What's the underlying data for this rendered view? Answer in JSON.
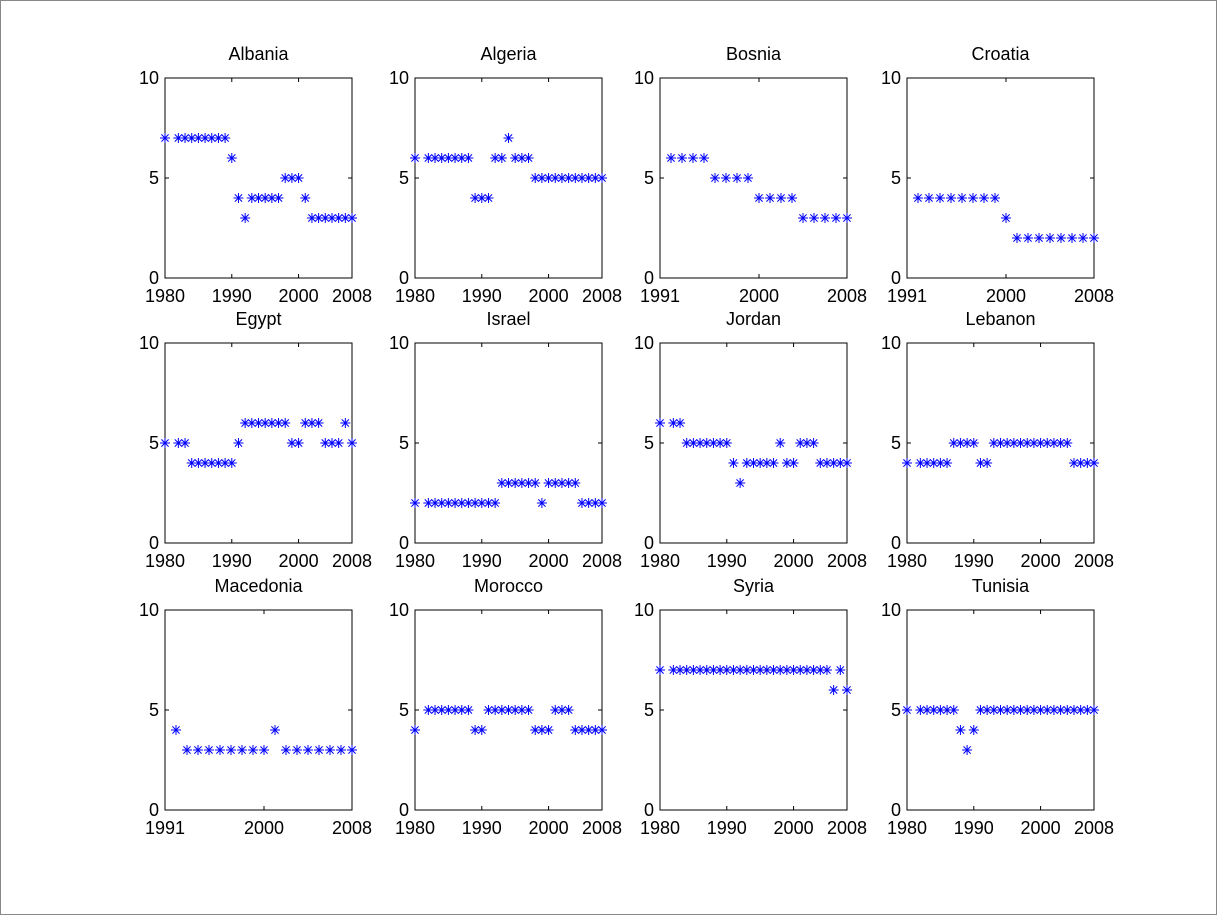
{
  "chart_data": [
    {
      "type": "scatter",
      "title": "Albania",
      "color": "#0000ff",
      "marker": "*",
      "xlim": [
        1980,
        2008
      ],
      "ylim": [
        0,
        10
      ],
      "xticks": [
        1980,
        1990,
        2000,
        2008
      ],
      "yticks": [
        0,
        5,
        10
      ],
      "x": [
        1980,
        1982,
        1983,
        1984,
        1985,
        1986,
        1987,
        1988,
        1989,
        1990,
        1991,
        1992,
        1993,
        1994,
        1995,
        1996,
        1997,
        1998,
        1999,
        2000,
        2001,
        2002,
        2003,
        2004,
        2005,
        2006,
        2007,
        2008
      ],
      "values": [
        7,
        7,
        7,
        7,
        7,
        7,
        7,
        7,
        7,
        6,
        4,
        3,
        4,
        4,
        4,
        4,
        4,
        5,
        5,
        5,
        4,
        3,
        3,
        3,
        3,
        3,
        3,
        3
      ]
    },
    {
      "type": "scatter",
      "title": "Algeria",
      "color": "#0000ff",
      "marker": "*",
      "xlim": [
        1980,
        2008
      ],
      "ylim": [
        0,
        10
      ],
      "xticks": [
        1980,
        1990,
        2000,
        2008
      ],
      "yticks": [
        0,
        5,
        10
      ],
      "x": [
        1980,
        1982,
        1983,
        1984,
        1985,
        1986,
        1987,
        1988,
        1989,
        1990,
        1991,
        1992,
        1993,
        1994,
        1995,
        1996,
        1997,
        1998,
        1999,
        2000,
        2001,
        2002,
        2003,
        2004,
        2005,
        2006,
        2007,
        2008
      ],
      "values": [
        6,
        6,
        6,
        6,
        6,
        6,
        6,
        6,
        4,
        4,
        4,
        6,
        6,
        7,
        6,
        6,
        6,
        5,
        5,
        5,
        5,
        5,
        5,
        5,
        5,
        5,
        5,
        5
      ]
    },
    {
      "type": "scatter",
      "title": "Bosnia",
      "color": "#0000ff",
      "marker": "*",
      "xlim": [
        1991,
        2008
      ],
      "ylim": [
        0,
        10
      ],
      "xticks": [
        1991,
        2000,
        2008
      ],
      "yticks": [
        0,
        5,
        10
      ],
      "x": [
        1992,
        1993,
        1994,
        1995,
        1996,
        1997,
        1998,
        1999,
        2000,
        2001,
        2002,
        2003,
        2004,
        2005,
        2006,
        2007,
        2008
      ],
      "values": [
        6,
        6,
        6,
        6,
        5,
        5,
        5,
        5,
        4,
        4,
        4,
        4,
        3,
        3,
        3,
        3,
        3
      ]
    },
    {
      "type": "scatter",
      "title": "Croatia",
      "color": "#0000ff",
      "marker": "*",
      "xlim": [
        1991,
        2008
      ],
      "ylim": [
        0,
        10
      ],
      "xticks": [
        1991,
        2000,
        2008
      ],
      "yticks": [
        0,
        5,
        10
      ],
      "x": [
        1992,
        1993,
        1994,
        1995,
        1996,
        1997,
        1998,
        1999,
        2000,
        2001,
        2002,
        2003,
        2004,
        2005,
        2006,
        2007,
        2008
      ],
      "values": [
        4,
        4,
        4,
        4,
        4,
        4,
        4,
        4,
        3,
        2,
        2,
        2,
        2,
        2,
        2,
        2,
        2
      ]
    },
    {
      "type": "scatter",
      "title": "Egypt",
      "color": "#0000ff",
      "marker": "*",
      "xlim": [
        1980,
        2008
      ],
      "ylim": [
        0,
        10
      ],
      "xticks": [
        1980,
        1990,
        2000,
        2008
      ],
      "yticks": [
        0,
        5,
        10
      ],
      "x": [
        1980,
        1982,
        1983,
        1984,
        1985,
        1986,
        1987,
        1988,
        1989,
        1990,
        1991,
        1992,
        1993,
        1994,
        1995,
        1996,
        1997,
        1998,
        1999,
        2000,
        2001,
        2002,
        2003,
        2004,
        2005,
        2006,
        2007,
        2008
      ],
      "values": [
        5,
        5,
        5,
        4,
        4,
        4,
        4,
        4,
        4,
        4,
        5,
        6,
        6,
        6,
        6,
        6,
        6,
        6,
        5,
        5,
        6,
        6,
        6,
        5,
        5,
        5,
        6,
        5
      ]
    },
    {
      "type": "scatter",
      "title": "Israel",
      "color": "#0000ff",
      "marker": "*",
      "xlim": [
        1980,
        2008
      ],
      "ylim": [
        0,
        10
      ],
      "xticks": [
        1980,
        1990,
        2000,
        2008
      ],
      "yticks": [
        0,
        5,
        10
      ],
      "x": [
        1980,
        1982,
        1983,
        1984,
        1985,
        1986,
        1987,
        1988,
        1989,
        1990,
        1991,
        1992,
        1993,
        1994,
        1995,
        1996,
        1997,
        1998,
        1999,
        2000,
        2001,
        2002,
        2003,
        2004,
        2005,
        2006,
        2007,
        2008
      ],
      "values": [
        2,
        2,
        2,
        2,
        2,
        2,
        2,
        2,
        2,
        2,
        2,
        2,
        3,
        3,
        3,
        3,
        3,
        3,
        2,
        3,
        3,
        3,
        3,
        3,
        2,
        2,
        2,
        2
      ]
    },
    {
      "type": "scatter",
      "title": "Jordan",
      "color": "#0000ff",
      "marker": "*",
      "xlim": [
        1980,
        2008
      ],
      "ylim": [
        0,
        10
      ],
      "xticks": [
        1980,
        1990,
        2000,
        2008
      ],
      "yticks": [
        0,
        5,
        10
      ],
      "x": [
        1980,
        1982,
        1983,
        1984,
        1985,
        1986,
        1987,
        1988,
        1989,
        1990,
        1991,
        1992,
        1993,
        1994,
        1995,
        1996,
        1997,
        1998,
        1999,
        2000,
        2001,
        2002,
        2003,
        2004,
        2005,
        2006,
        2007,
        2008
      ],
      "values": [
        6,
        6,
        6,
        5,
        5,
        5,
        5,
        5,
        5,
        5,
        4,
        3,
        4,
        4,
        4,
        4,
        4,
        5,
        4,
        4,
        5,
        5,
        5,
        4,
        4,
        4,
        4,
        4
      ]
    },
    {
      "type": "scatter",
      "title": "Lebanon",
      "color": "#0000ff",
      "marker": "*",
      "xlim": [
        1980,
        2008
      ],
      "ylim": [
        0,
        10
      ],
      "xticks": [
        1980,
        1990,
        2000,
        2008
      ],
      "yticks": [
        0,
        5,
        10
      ],
      "x": [
        1980,
        1982,
        1983,
        1984,
        1985,
        1986,
        1987,
        1988,
        1989,
        1990,
        1991,
        1992,
        1993,
        1994,
        1995,
        1996,
        1997,
        1998,
        1999,
        2000,
        2001,
        2002,
        2003,
        2004,
        2005,
        2006,
        2007,
        2008
      ],
      "values": [
        4,
        4,
        4,
        4,
        4,
        4,
        5,
        5,
        5,
        5,
        4,
        4,
        5,
        5,
        5,
        5,
        5,
        5,
        5,
        5,
        5,
        5,
        5,
        5,
        4,
        4,
        4,
        4
      ]
    },
    {
      "type": "scatter",
      "title": "Macedonia",
      "color": "#0000ff",
      "marker": "*",
      "xlim": [
        1991,
        2008
      ],
      "ylim": [
        0,
        10
      ],
      "xticks": [
        1991,
        2000,
        2008
      ],
      "yticks": [
        0,
        5,
        10
      ],
      "x": [
        1992,
        1993,
        1994,
        1995,
        1996,
        1997,
        1998,
        1999,
        2000,
        2001,
        2002,
        2003,
        2004,
        2005,
        2006,
        2007,
        2008
      ],
      "values": [
        4,
        3,
        3,
        3,
        3,
        3,
        3,
        3,
        3,
        4,
        3,
        3,
        3,
        3,
        3,
        3,
        3
      ]
    },
    {
      "type": "scatter",
      "title": "Morocco",
      "color": "#0000ff",
      "marker": "*",
      "xlim": [
        1980,
        2008
      ],
      "ylim": [
        0,
        10
      ],
      "xticks": [
        1980,
        1990,
        2000,
        2008
      ],
      "yticks": [
        0,
        5,
        10
      ],
      "x": [
        1980,
        1982,
        1983,
        1984,
        1985,
        1986,
        1987,
        1988,
        1989,
        1990,
        1991,
        1992,
        1993,
        1994,
        1995,
        1996,
        1997,
        1998,
        1999,
        2000,
        2001,
        2002,
        2003,
        2004,
        2005,
        2006,
        2007,
        2008
      ],
      "values": [
        4,
        5,
        5,
        5,
        5,
        5,
        5,
        5,
        4,
        4,
        5,
        5,
        5,
        5,
        5,
        5,
        5,
        4,
        4,
        4,
        5,
        5,
        5,
        4,
        4,
        4,
        4,
        4
      ]
    },
    {
      "type": "scatter",
      "title": "Syria",
      "color": "#0000ff",
      "marker": "*",
      "xlim": [
        1980,
        2008
      ],
      "ylim": [
        0,
        10
      ],
      "xticks": [
        1980,
        1990,
        2000,
        2008
      ],
      "yticks": [
        0,
        5,
        10
      ],
      "x": [
        1980,
        1982,
        1983,
        1984,
        1985,
        1986,
        1987,
        1988,
        1989,
        1990,
        1991,
        1992,
        1993,
        1994,
        1995,
        1996,
        1997,
        1998,
        1999,
        2000,
        2001,
        2002,
        2003,
        2004,
        2005,
        2006,
        2007,
        2008
      ],
      "values": [
        7,
        7,
        7,
        7,
        7,
        7,
        7,
        7,
        7,
        7,
        7,
        7,
        7,
        7,
        7,
        7,
        7,
        7,
        7,
        7,
        7,
        7,
        7,
        7,
        7,
        6,
        7,
        6
      ]
    },
    {
      "type": "scatter",
      "title": "Tunisia",
      "color": "#0000ff",
      "marker": "*",
      "xlim": [
        1980,
        2008
      ],
      "ylim": [
        0,
        10
      ],
      "xticks": [
        1980,
        1990,
        2000,
        2008
      ],
      "yticks": [
        0,
        5,
        10
      ],
      "x": [
        1980,
        1982,
        1983,
        1984,
        1985,
        1986,
        1987,
        1988,
        1989,
        1990,
        1991,
        1992,
        1993,
        1994,
        1995,
        1996,
        1997,
        1998,
        1999,
        2000,
        2001,
        2002,
        2003,
        2004,
        2005,
        2006,
        2007,
        2008
      ],
      "values": [
        5,
        5,
        5,
        5,
        5,
        5,
        5,
        4,
        3,
        4,
        5,
        5,
        5,
        5,
        5,
        5,
        5,
        5,
        5,
        5,
        5,
        5,
        5,
        5,
        5,
        5,
        5,
        5
      ]
    }
  ]
}
